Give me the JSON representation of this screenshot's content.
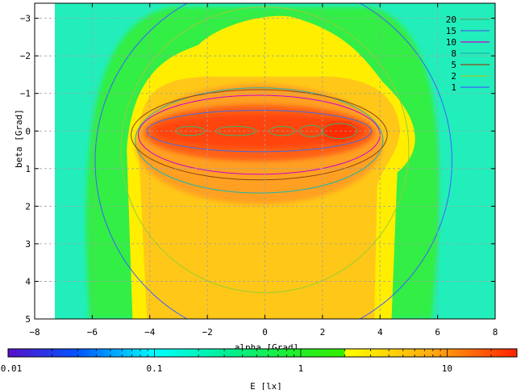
{
  "chart_data": {
    "type": "heatmap",
    "title": "",
    "xlabel": "alpha [Grad]",
    "ylabel": "beta [Grad]",
    "xlim": [
      -8,
      8
    ],
    "ylim": [
      -3.4,
      5
    ],
    "y_reversed": true,
    "x_ticks": [
      "−8",
      "−6",
      "−4",
      "−2",
      "0",
      "2",
      "4",
      "6",
      "8"
    ],
    "x_tick_values": [
      -8,
      -6,
      -4,
      -2,
      0,
      2,
      4,
      6,
      8
    ],
    "y_ticks": [
      "−3",
      "−2",
      "−1",
      "0",
      "1",
      "2",
      "3",
      "4",
      "5"
    ],
    "y_tick_values": [
      -3,
      -2,
      -1,
      0,
      1,
      2,
      3,
      4,
      5
    ],
    "grid": true,
    "data_extent": {
      "x_min": -7.3,
      "x_max": 8
    },
    "colorbar": {
      "label": "E [lx]",
      "scale": "log",
      "range": [
        0.01,
        30
      ],
      "tick_labels": [
        "0.01",
        "0.1",
        "1",
        "10"
      ],
      "tick_values": [
        0.01,
        0.1,
        1,
        10
      ],
      "colors": [
        {
          "value": 0.01,
          "color": "#5a10c8"
        },
        {
          "value": 0.03,
          "color": "#0055ff"
        },
        {
          "value": 0.1,
          "color": "#00ffff"
        },
        {
          "value": 0.3,
          "color": "#00ee99"
        },
        {
          "value": 1.0,
          "color": "#22ee22"
        },
        {
          "value": 1.99,
          "color": "#33ee00"
        },
        {
          "value": 2.0,
          "color": "#ffff00"
        },
        {
          "value": 8.0,
          "color": "#ffaa10"
        },
        {
          "value": 30,
          "color": "#ff2200"
        }
      ]
    },
    "contours": [
      {
        "name": "20",
        "color": "#3cb371",
        "regions": [
          {
            "cx": -2.6,
            "cy": 0.0,
            "rx": 0.5,
            "ry": 0.12
          },
          {
            "cx": -1.0,
            "cy": 0.0,
            "rx": 0.7,
            "ry": 0.12
          },
          {
            "cx": 0.6,
            "cy": 0.0,
            "rx": 0.45,
            "ry": 0.12
          },
          {
            "cx": 1.6,
            "cy": 0.0,
            "rx": 0.4,
            "ry": 0.15
          },
          {
            "cx": 2.6,
            "cy": 0.0,
            "rx": 0.6,
            "ry": 0.2
          }
        ]
      },
      {
        "name": "15",
        "color": "#4169e1",
        "regions": [
          {
            "cx": -0.2,
            "cy": 0.0,
            "rx": 3.9,
            "ry": 0.55
          }
        ]
      },
      {
        "name": "10",
        "color": "#cc00cc",
        "regions": [
          {
            "cx": -0.2,
            "cy": 0.1,
            "rx": 4.2,
            "ry": 1.05
          }
        ]
      },
      {
        "name": "8",
        "color": "#20b2aa",
        "regions": [
          {
            "cx": -0.2,
            "cy": 0.25,
            "rx": 4.3,
            "ry": 1.4
          }
        ]
      },
      {
        "name": "5",
        "color": "#8b4513",
        "regions": [
          {
            "cx": -0.2,
            "cy": 0.1,
            "rx": 4.45,
            "ry": 1.2
          }
        ]
      },
      {
        "name": "2",
        "color": "#9acd32",
        "regions": [
          {
            "cx": 0.0,
            "cy": 0.5,
            "rx": 5.0,
            "ry": 3.8
          }
        ]
      },
      {
        "name": "1",
        "color": "#4060ff",
        "regions": [
          {
            "cx": 0.3,
            "cy": 0.8,
            "rx": 6.2,
            "ry": 4.8
          }
        ]
      }
    ]
  }
}
